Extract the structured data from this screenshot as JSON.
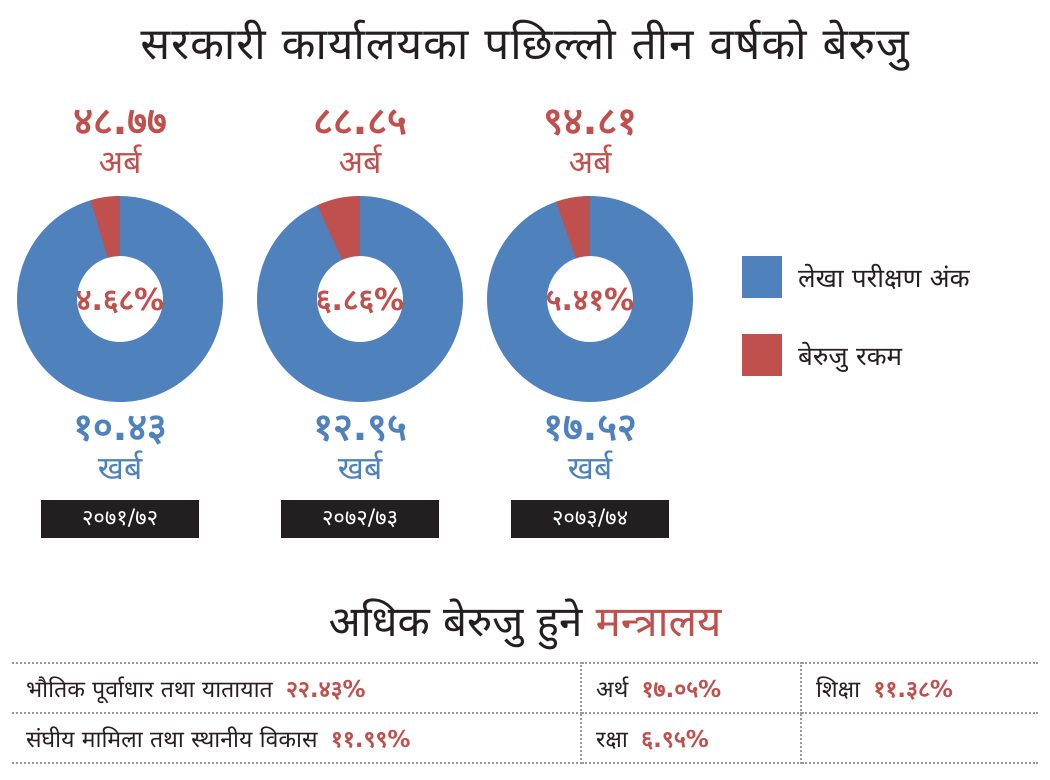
{
  "title": "सरकारी कार्यालयका पछिल्लो तीन वर्षको बेरुजु",
  "colors": {
    "audit": "#4f81bd",
    "beruju": "#c0504d",
    "dark": "#231f20"
  },
  "chart_data": {
    "type": "pie",
    "series_names": [
      "लेखा परीक्षण अंक",
      "बेरुजु रकम"
    ],
    "charts": [
      {
        "year": "२०७१/७२",
        "beruju_amount": "४८.७७",
        "beruju_unit": "अर्ब",
        "audit_amount": "१०.४३",
        "audit_unit": "खर्ब",
        "percent": 4.68,
        "percent_label": "४.६८%"
      },
      {
        "year": "२०७२/७३",
        "beruju_amount": "८८.८५",
        "beruju_unit": "अर्ब",
        "audit_amount": "१२.९५",
        "audit_unit": "खर्ब",
        "percent": 6.86,
        "percent_label": "६.८६%"
      },
      {
        "year": "२०७३/७४",
        "beruju_amount": "९४.८१",
        "beruju_unit": "अर्ब",
        "audit_amount": "१७.५२",
        "audit_unit": "खर्ब",
        "percent": 5.41,
        "percent_label": "५.४१%"
      }
    ],
    "legend": [
      "लेखा परीक्षण अंक",
      "बेरुजु रकम"
    ]
  },
  "ministries": {
    "title_prefix": "अधिक बेरुजु हुने",
    "title_highlight": "मन्त्रालय",
    "rows": [
      [
        {
          "name": "भौतिक पूर्वाधार तथा यातायात",
          "value": "२२.४३%"
        },
        {
          "name": "अर्थ",
          "value": "१७.०५%"
        },
        {
          "name": "शिक्षा",
          "value": "११.३८%"
        }
      ],
      [
        {
          "name": "संघीय मामिला तथा स्थानीय विकास",
          "value": "११.९९%"
        },
        {
          "name": "रक्षा",
          "value": "६.९५%"
        }
      ]
    ]
  }
}
